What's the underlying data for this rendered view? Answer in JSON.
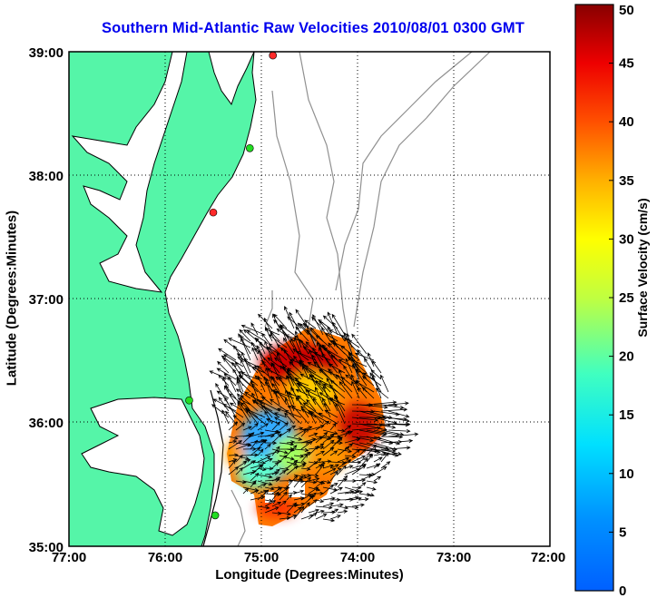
{
  "title": "Southern Mid-Atlantic Raw Velocities 2010/08/01 0300 GMT",
  "xlabel": "Longitude (Degrees:Minutes)",
  "ylabel": "Latitude (Degrees:Minutes)",
  "colorbar": {
    "label": "Surface Velocity (cm/s)",
    "min": 0,
    "max": 50,
    "ticks": [
      "0",
      "5",
      "10",
      "15",
      "20",
      "25",
      "30",
      "35",
      "40",
      "45",
      "50"
    ],
    "colormap": "jet"
  },
  "map": {
    "lon_range": [
      -77,
      -72
    ],
    "lat_range": [
      35,
      39
    ],
    "x_ticks": [
      "77:00",
      "76:00",
      "75:00",
      "74:00",
      "73:00",
      "72:00"
    ],
    "y_ticks": [
      "39:00",
      "38:00",
      "37:00",
      "36:00",
      "35:00"
    ],
    "grid": "dotted",
    "land_color": "#55f5a8",
    "coastline_color": "#000000",
    "isobath_color": "#909090",
    "stations": [
      {
        "lon": -74.88,
        "lat": 38.97,
        "color": "#ff2a2a"
      },
      {
        "lon": -75.12,
        "lat": 38.22,
        "color": "#22dd22"
      },
      {
        "lon": -75.5,
        "lat": 37.7,
        "color": "#ff2a2a"
      },
      {
        "lon": -75.75,
        "lat": 36.18,
        "color": "#22dd22"
      },
      {
        "lon": -75.48,
        "lat": 35.25,
        "color": "#22dd22"
      }
    ]
  }
}
